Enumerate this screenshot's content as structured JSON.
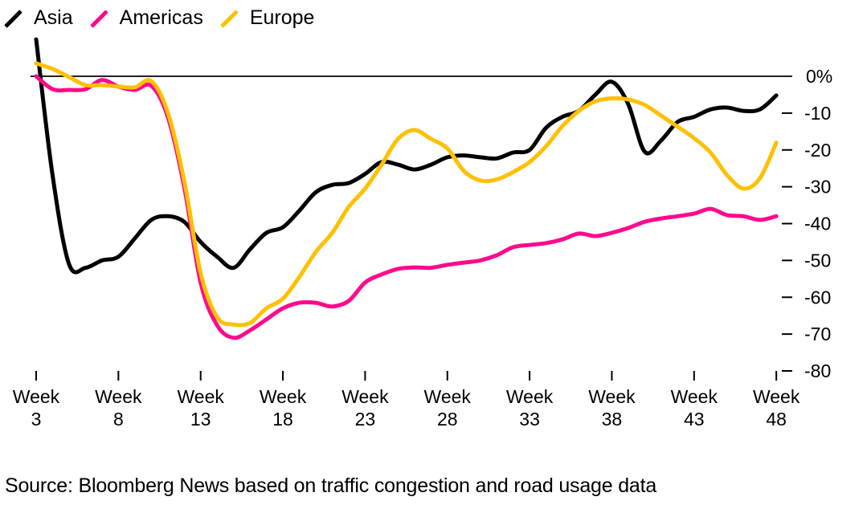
{
  "chart_data": {
    "type": "line",
    "title": "",
    "xlabel": "",
    "ylabel": "",
    "x": [
      3,
      4,
      5,
      6,
      7,
      8,
      9,
      10,
      11,
      12,
      13,
      14,
      15,
      16,
      17,
      18,
      19,
      20,
      21,
      22,
      23,
      24,
      25,
      26,
      27,
      28,
      29,
      30,
      31,
      32,
      33,
      34,
      35,
      36,
      37,
      38,
      39,
      40,
      41,
      42,
      43,
      44,
      45,
      46,
      47,
      48
    ],
    "x_ticks": [
      3,
      8,
      13,
      18,
      23,
      28,
      33,
      38,
      43,
      48
    ],
    "x_tick_labels": [
      {
        "line1": "Week",
        "line2": "3"
      },
      {
        "line1": "Week",
        "line2": "8"
      },
      {
        "line1": "Week",
        "line2": "13"
      },
      {
        "line1": "Week",
        "line2": "18"
      },
      {
        "line1": "Week",
        "line2": "23"
      },
      {
        "line1": "Week",
        "line2": "28"
      },
      {
        "line1": "Week",
        "line2": "33"
      },
      {
        "line1": "Week",
        "line2": "38"
      },
      {
        "line1": "Week",
        "line2": "43"
      },
      {
        "line1": "Week",
        "line2": "48"
      }
    ],
    "y_ticks": [
      0,
      -10,
      -20,
      -30,
      -40,
      -50,
      -60,
      -70,
      -80
    ],
    "y_tick_labels": [
      "0%",
      "-10",
      "-20",
      "-30",
      "-40",
      "-50",
      "-60",
      "-70",
      "-80"
    ],
    "xlim": [
      3,
      48
    ],
    "ylim": [
      -80,
      10
    ],
    "grid": false,
    "reference_line": 0,
    "legend_position": "top-left",
    "series": [
      {
        "name": "Asia",
        "color": "#000000",
        "values": [
          10,
          -27,
          -51,
          -52,
          -50,
          -49,
          -44,
          -39,
          -38,
          -39.5,
          -45,
          -49,
          -52,
          -47,
          -42.5,
          -41,
          -36.5,
          -31.5,
          -29.5,
          -29,
          -26.5,
          -23.3,
          -24,
          -25.3,
          -24,
          -22,
          -21.5,
          -22,
          -22.3,
          -20.7,
          -20,
          -14,
          -11,
          -9.4,
          -5,
          -1.5,
          -7.6,
          -20.5,
          -17.4,
          -12.4,
          -11,
          -9,
          -8.5,
          -9.4,
          -9,
          -5.2
        ]
      },
      {
        "name": "Americas",
        "color": "#ff0a8c",
        "values": [
          0,
          -3.5,
          -3.7,
          -3.5,
          -1,
          -2.8,
          -3.7,
          -2.6,
          -11,
          -30,
          -56,
          -67.6,
          -71,
          -69,
          -66,
          -63,
          -61.5,
          -61.5,
          -62.5,
          -61,
          -56,
          -53.8,
          -52.3,
          -51.9,
          -52,
          -51.2,
          -50.6,
          -50,
          -48.6,
          -46.4,
          -45.8,
          -45.3,
          -44.3,
          -42.7,
          -43.4,
          -42.5,
          -41.2,
          -39.5,
          -38.6,
          -38,
          -37.3,
          -36,
          -37.7,
          -38,
          -39,
          -38
        ]
      },
      {
        "name": "Europe",
        "color": "#ffc000",
        "values": [
          3.5,
          2,
          -0.2,
          -2.4,
          -2.4,
          -2.8,
          -3,
          -1.3,
          -9.8,
          -28.3,
          -53.4,
          -65.4,
          -67.4,
          -67,
          -63,
          -60.4,
          -54.5,
          -47.7,
          -42.5,
          -35.5,
          -30.5,
          -24,
          -17,
          -14.6,
          -17,
          -19.6,
          -25.7,
          -28.3,
          -28,
          -26,
          -23.3,
          -19,
          -13.5,
          -9.4,
          -6.8,
          -6,
          -6.3,
          -7.8,
          -10.7,
          -13.7,
          -16.8,
          -20.7,
          -26.8,
          -30.5,
          -27.7,
          -18
        ]
      }
    ]
  },
  "legend": {
    "items": [
      {
        "label": "Asia",
        "color": "#000000"
      },
      {
        "label": "Americas",
        "color": "#ff0a8c"
      },
      {
        "label": "Europe",
        "color": "#ffc000"
      }
    ]
  },
  "source": "Source: Bloomberg News based on traffic congestion and road usage data"
}
